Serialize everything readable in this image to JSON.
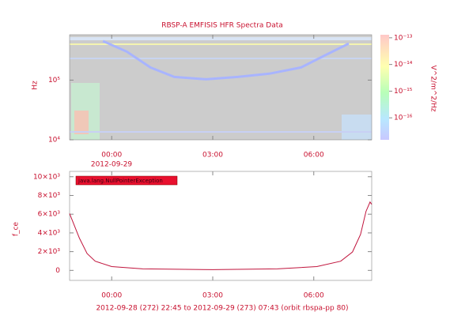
{
  "chart_data": [
    {
      "type": "spectrogram",
      "title": "RBSP-A EMFISIS HFR Spectra Data",
      "ylabel": "Hz",
      "ylog": true,
      "xlim": [
        -1.25,
        7.72
      ],
      "xticks": [
        {
          "value": 0,
          "label": "00:00"
        },
        {
          "value": 3,
          "label": "03:00"
        },
        {
          "value": 6,
          "label": "06:00"
        }
      ],
      "date_label": "2012-09-29",
      "ylim": [
        10000,
        575000
      ],
      "yticks": [
        {
          "value": 10000,
          "label": "10⁴"
        },
        {
          "value": 100000,
          "label": "10⁵"
        }
      ],
      "x": [
        -0.26,
        0.45,
        1.15,
        1.86,
        2.8,
        3.74,
        4.68,
        5.62,
        6.33,
        7.04
      ],
      "values": [
        450000,
        300000,
        163000,
        113000,
        103000,
        113000,
        128000,
        163000,
        260000,
        410000
      ],
      "color": "#a8b4ff",
      "colorbar": {
        "label": "V^2/m^2/Hz",
        "lim": [
          1.5e-17,
          1.3e-13
        ],
        "ticks": [
          {
            "value": 1e-13,
            "label": "10⁻¹³"
          },
          {
            "value": 1e-14,
            "label": "10⁻¹⁴"
          },
          {
            "value": 1e-15,
            "label": "10⁻¹⁵"
          },
          {
            "value": 1e-16,
            "label": "10⁻¹⁶"
          }
        ]
      }
    },
    {
      "type": "line",
      "ylabel": "f_ce",
      "xlabel": "2012-09-28 (272) 22:45 to 2012-09-29 (273) 07:43 (orbit rbspa-pp 80)",
      "annotation": "java.lang.NullPointerException",
      "xlim": [
        -1.25,
        7.72
      ],
      "xticks": [
        {
          "value": 0,
          "label": "00:00"
        },
        {
          "value": 3,
          "label": "03:00"
        },
        {
          "value": 6,
          "label": "06:00"
        }
      ],
      "ylim": [
        -1070,
        10570
      ],
      "yticks": [
        {
          "value": 0,
          "label": "0"
        },
        {
          "value": 2000,
          "label": "2×10³"
        },
        {
          "value": 4000,
          "label": "4×10³"
        },
        {
          "value": 6000,
          "label": "6×10³"
        },
        {
          "value": 8000,
          "label": "8×10³"
        },
        {
          "value": 10000,
          "label": "10×10³"
        }
      ],
      "x": [
        -1.25,
        -0.96,
        -0.73,
        -0.49,
        0,
        0.92,
        3,
        4.92,
        6.09,
        6.8,
        7.15,
        7.39,
        7.55,
        7.67,
        7.72
      ],
      "values": [
        6070,
        3440,
        1800,
        980,
        410,
        160,
        80,
        160,
        410,
        980,
        1970,
        3850,
        6300,
        7300,
        7050
      ],
      "color": "#c0143c"
    }
  ]
}
